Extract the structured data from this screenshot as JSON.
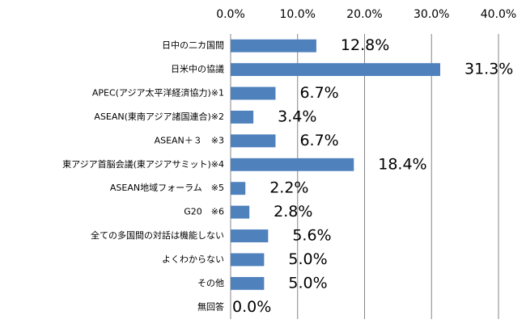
{
  "chart_data": {
    "type": "bar",
    "orientation": "horizontal",
    "categories": [
      "日中の二カ国間",
      "日米中の協議",
      "APEC(アジア太平洋経済協力)※1",
      "ASEAN(東南アジア諸国連合)※2",
      "ASEAN＋３　※3",
      "東アジア首脳会議(東アジアサミット)※4",
      "ASEAN地域フォーラム　※5",
      "G20　※6",
      "全ての多国間の対話は機能しない",
      "よくわからない",
      "その他",
      "無回答"
    ],
    "values": [
      12.8,
      31.3,
      6.7,
      3.4,
      6.7,
      18.4,
      2.2,
      2.8,
      5.6,
      5.0,
      5.0,
      0.0
    ],
    "value_labels": [
      "12.8%",
      "31.3%",
      "6.7%",
      "3.4%",
      "6.7%",
      "18.4%",
      "2.2%",
      "2.8%",
      "5.6%",
      "5.0%",
      "5.0%",
      "0.0%"
    ],
    "color": "#4f81bd",
    "xlim": [
      0,
      40
    ],
    "xticks": [
      {
        "value": 0,
        "label": "0.0%"
      },
      {
        "value": 10,
        "label": "10.0%"
      },
      {
        "value": 20,
        "label": "20.0%"
      },
      {
        "value": 30,
        "label": "30.0%"
      },
      {
        "value": 40,
        "label": "40.0%"
      }
    ],
    "grid": true
  }
}
